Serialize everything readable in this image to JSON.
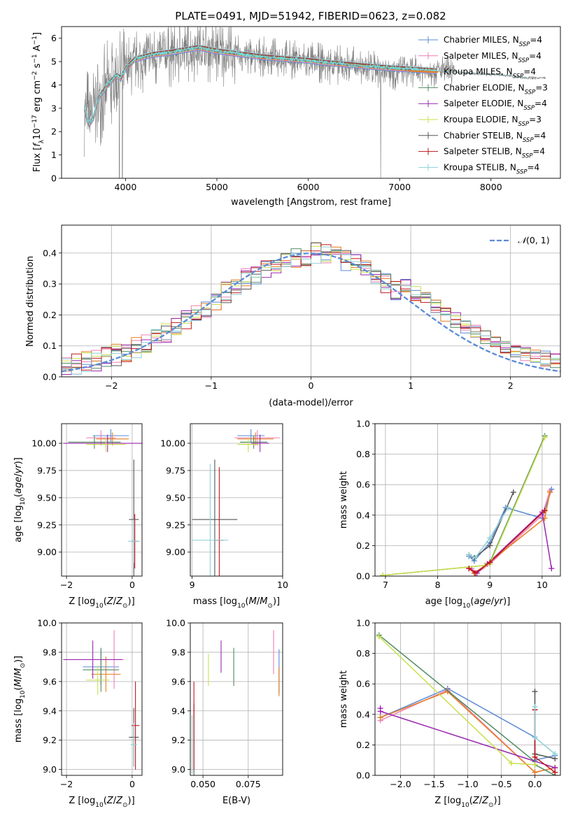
{
  "title": "PLATE=0491, MJD=51942, FIBERID=0623, z=0.082",
  "series_names": [
    "Chabrier MILES, N_SSP=4",
    "Salpeter MILES, N_SSP=4",
    "Kroupa MILES, N_SSP=4",
    "Chabrier ELODIE, N_SSP=3",
    "Salpeter ELODIE, N_SSP=4",
    "Kroupa ELODIE, N_SSP=3",
    "Chabrier STELIB, N_SSP=4",
    "Salpeter STELIB, N_SSP=4",
    "Kroupa STELIB, N_SSP=4"
  ],
  "legend_labels": [
    {
      "name": "Chabrier MILES, N",
      "sub": "SSP",
      "suffix": "=4"
    },
    {
      "name": "Salpeter MILES, N",
      "sub": "SSP",
      "suffix": "=4"
    },
    {
      "name": "Kroupa MILES, N",
      "sub": "SSP",
      "suffix": "=4"
    },
    {
      "name": "Chabrier ELODIE, N",
      "sub": "SSP",
      "suffix": "=3"
    },
    {
      "name": "Salpeter ELODIE, N",
      "sub": "SSP",
      "suffix": "=4"
    },
    {
      "name": "Kroupa ELODIE, N",
      "sub": "SSP",
      "suffix": "=3"
    },
    {
      "name": "Chabrier STELIB, N",
      "sub": "SSP",
      "suffix": "=4"
    },
    {
      "name": "Salpeter STELIB, N",
      "sub": "SSP",
      "suffix": "=4"
    },
    {
      "name": "Kroupa STELIB, N",
      "sub": "SSP",
      "suffix": "=4"
    }
  ],
  "colors": [
    "#5b8bd6",
    "#ee7fb5",
    "#e67e22",
    "#4f8a5e",
    "#9b27af",
    "#c9e04c",
    "#555555",
    "#c0161b",
    "#8fd0d6"
  ],
  "chart_data": [
    {
      "id": "spectrum",
      "type": "line",
      "title": "PLATE=0491, MJD=51942, FIBERID=0623, z=0.082",
      "xlabel": "wavelength [Angstrom, rest frame]",
      "ylabel": "Flux [f_λ 10^-17 erg cm^-2 s^-1 A^-1]",
      "xlim": [
        3300,
        8760
      ],
      "ylim": [
        0,
        6.5
      ],
      "xticks": [
        4000,
        5000,
        6000,
        7000,
        8000
      ],
      "yticks": [
        0,
        1,
        2,
        3,
        4,
        5,
        6
      ],
      "grid": false,
      "legend": "right",
      "data_color": "#7f7f7f",
      "data_x": [
        3550,
        3600,
        3700,
        3800,
        3900,
        3950,
        4000,
        4100,
        4300,
        4500,
        4800,
        5000,
        5200,
        5500,
        5800,
        6000,
        6200,
        6500,
        6800,
        7000,
        7200,
        7400,
        7600,
        7800,
        8000,
        8200,
        8400
      ],
      "data_y": [
        3.0,
        2.7,
        3.3,
        3.9,
        4.3,
        4.4,
        4.6,
        5.0,
        5.2,
        5.3,
        5.5,
        5.4,
        5.3,
        5.2,
        5.1,
        5.0,
        4.9,
        4.8,
        4.7,
        4.6,
        4.6,
        4.6,
        4.55,
        4.5,
        4.45,
        4.4,
        4.3
      ],
      "noise_amplitude": 1.6,
      "model_x": [
        3550,
        3600,
        3650,
        3700,
        3800,
        3900,
        3950,
        4000,
        4100,
        4300,
        4500,
        4800,
        5000,
        5200,
        5500,
        5800,
        6000,
        6200,
        6500,
        6800,
        7000,
        7200,
        7400
      ],
      "model_y": [
        3.0,
        2.3,
        2.6,
        3.4,
        4.0,
        4.4,
        4.3,
        4.7,
        5.1,
        5.3,
        5.4,
        5.6,
        5.45,
        5.35,
        5.2,
        5.1,
        5.05,
        4.95,
        4.85,
        4.75,
        4.7,
        4.65,
        4.6
      ],
      "tail_x": [
        7400,
        7600,
        7800,
        8000,
        8200,
        8400
      ],
      "tail_y": [
        4.6,
        4.55,
        4.5,
        4.45,
        4.4,
        4.3
      ]
    },
    {
      "id": "residuals",
      "type": "histogram",
      "xlabel": "(data-model)/error",
      "ylabel": "Normed distribution",
      "xlim": [
        -2.5,
        2.5
      ],
      "ylim": [
        0,
        0.49
      ],
      "xticks": [
        -2,
        -1,
        0,
        1,
        2
      ],
      "yticks": [
        0.0,
        0.1,
        0.2,
        0.3,
        0.4
      ],
      "grid": true,
      "legend": "top-right",
      "bin_width": 0.1,
      "reference_curve": "N(0,1)",
      "reference_label_main": "𝒩",
      "reference_label_args": "(0, 1)",
      "reference_color": "#5b8bd6"
    },
    {
      "id": "age_vs_Z",
      "type": "scatter",
      "xlabel": "Z [log10(Z/Z☉)]",
      "ylabel": "age [log10(age/yr)]",
      "xlim": [
        -2.15,
        0.3
      ],
      "ylim": [
        8.78,
        10.18
      ],
      "xticks": [
        -2,
        0
      ],
      "yticks": [
        9.0,
        9.25,
        9.5,
        9.75,
        10.0
      ],
      "grid": true,
      "points": [
        {
          "x": -0.65,
          "y": 10.07,
          "xerr": 0.55,
          "yerr": 0.06,
          "c": 0
        },
        {
          "x": -0.95,
          "y": 10.05,
          "xerr": 0.45,
          "yerr": 0.07,
          "c": 1
        },
        {
          "x": -0.6,
          "y": 10.04,
          "xerr": 0.5,
          "yerr": 0.06,
          "c": 2
        },
        {
          "x": -1.15,
          "y": 10.01,
          "xerr": 0.8,
          "yerr": 0.06,
          "c": 3
        },
        {
          "x": -0.75,
          "y": 10.0,
          "xerr": 1.35,
          "yerr": 0.08,
          "c": 4
        },
        {
          "x": -0.8,
          "y": 9.99,
          "xerr": 0.6,
          "yerr": 0.07,
          "c": 5
        },
        {
          "x": 0.05,
          "y": 9.3,
          "xerr": 0.15,
          "yerr": 0.55,
          "c": 6
        },
        {
          "x": 0.08,
          "y": 9.1,
          "xerr": 0.1,
          "yerr": 0.25,
          "c": 7
        },
        {
          "x": 0.05,
          "y": 9.1,
          "xerr": 0.18,
          "yerr": 0.2,
          "c": 8
        }
      ]
    },
    {
      "id": "age_vs_mass",
      "type": "scatter",
      "xlabel": "mass [log10(M/M☉)]",
      "ylabel": "",
      "xlim": [
        8.98,
        10.0
      ],
      "ylim": [
        8.78,
        10.18
      ],
      "xticks": [
        9,
        10
      ],
      "yticks": [
        9.0,
        9.25,
        9.5,
        9.75,
        10.0
      ],
      "grid": true,
      "points": [
        {
          "x": 9.65,
          "y": 10.07,
          "xerr": 0.15,
          "yerr": 0.06,
          "c": 0
        },
        {
          "x": 9.72,
          "y": 10.05,
          "xerr": 0.25,
          "yerr": 0.07,
          "c": 1
        },
        {
          "x": 9.7,
          "y": 10.04,
          "xerr": 0.2,
          "yerr": 0.06,
          "c": 2
        },
        {
          "x": 9.68,
          "y": 10.01,
          "xerr": 0.15,
          "yerr": 0.06,
          "c": 3
        },
        {
          "x": 9.75,
          "y": 10.0,
          "xerr": 0.1,
          "yerr": 0.08,
          "c": 4
        },
        {
          "x": 9.62,
          "y": 9.99,
          "xerr": 0.12,
          "yerr": 0.07,
          "c": 5
        },
        {
          "x": 9.25,
          "y": 9.3,
          "xerr": 0.25,
          "yerr": 0.55,
          "c": 6
        },
        {
          "x": 9.3,
          "y": 9.11,
          "xerr": 0.05,
          "yerr": 0.67,
          "c": 7
        },
        {
          "x": 9.2,
          "y": 9.11,
          "xerr": 0.2,
          "yerr": 0.7,
          "c": 8
        }
      ]
    },
    {
      "id": "mass_weight_vs_age",
      "type": "line",
      "xlabel": "age [log10(age/yr)]",
      "ylabel": "mass weight",
      "xlim": [
        6.8,
        10.35
      ],
      "ylim": [
        0.0,
        1.0
      ],
      "xticks": [
        7,
        8,
        9,
        10
      ],
      "yticks": [
        0.0,
        0.2,
        0.4,
        0.6,
        0.8,
        1.0
      ],
      "grid": true,
      "series": [
        {
          "c": 0,
          "x": [
            8.6,
            8.7,
            9.0,
            9.3,
            10.0,
            10.18
          ],
          "y": [
            0.13,
            0.1,
            0.22,
            0.45,
            0.38,
            0.57
          ]
        },
        {
          "c": 1,
          "x": [
            8.65,
            8.75,
            9.0,
            10.0,
            10.15
          ],
          "y": [
            0.05,
            0.02,
            0.08,
            0.4,
            0.56
          ]
        },
        {
          "c": 2,
          "x": [
            8.6,
            8.7,
            8.95,
            10.05,
            10.15
          ],
          "y": [
            0.05,
            0.02,
            0.08,
            0.38,
            0.55
          ]
        },
        {
          "c": 3,
          "x": [
            6.95,
            8.9,
            9.0,
            10.05
          ],
          "y": [
            0.005,
            0.07,
            0.09,
            0.92
          ]
        },
        {
          "c": 4,
          "x": [
            8.6,
            8.75,
            8.95,
            10.0,
            10.18
          ],
          "y": [
            0.05,
            0.02,
            0.08,
            0.42,
            0.05
          ]
        },
        {
          "c": 5,
          "x": [
            6.95,
            8.9,
            9.0,
            10.05
          ],
          "y": [
            0.005,
            0.07,
            0.08,
            0.91
          ]
        },
        {
          "c": 6,
          "x": [
            8.6,
            8.7,
            9.0,
            9.45
          ],
          "y": [
            0.14,
            0.12,
            0.2,
            0.55
          ]
        },
        {
          "c": 7,
          "x": [
            8.6,
            8.72,
            9.0,
            10.05
          ],
          "y": [
            0.05,
            0.02,
            0.09,
            0.43
          ]
        },
        {
          "c": 8,
          "x": [
            8.6,
            8.72,
            9.0,
            9.35
          ],
          "y": [
            0.14,
            0.12,
            0.25,
            0.45
          ]
        }
      ]
    },
    {
      "id": "mass_vs_Z",
      "type": "scatter",
      "xlabel": "Z [log10(Z/Z☉)]",
      "ylabel": "mass [log10(M/M☉)]",
      "xlim": [
        -2.15,
        0.3
      ],
      "ylim": [
        8.96,
        10.0
      ],
      "xticks": [
        -2,
        0
      ],
      "yticks": [
        9.0,
        9.2,
        9.4,
        9.6,
        9.8,
        10.0
      ],
      "grid": true,
      "points": [
        {
          "x": -0.95,
          "y": 9.7,
          "xerr": 0.55,
          "yerr": 0.12,
          "c": 0
        },
        {
          "x": -0.55,
          "y": 9.75,
          "xerr": 0.3,
          "yerr": 0.2,
          "c": 1
        },
        {
          "x": -0.8,
          "y": 9.65,
          "xerr": 0.45,
          "yerr": 0.12,
          "c": 2
        },
        {
          "x": -0.95,
          "y": 9.68,
          "xerr": 0.55,
          "yerr": 0.15,
          "c": 3
        },
        {
          "x": -1.2,
          "y": 9.75,
          "xerr": 0.9,
          "yerr": 0.13,
          "c": 4
        },
        {
          "x": -1.05,
          "y": 9.61,
          "xerr": 0.35,
          "yerr": 0.1,
          "c": 5
        },
        {
          "x": 0.05,
          "y": 9.22,
          "xerr": 0.15,
          "yerr": 0.2,
          "c": 6
        },
        {
          "x": 0.1,
          "y": 9.3,
          "xerr": 0.12,
          "yerr": 0.3,
          "c": 7
        },
        {
          "x": 0.05,
          "y": 9.17,
          "xerr": 0.1,
          "yerr": 0.15,
          "c": 8
        }
      ]
    },
    {
      "id": "mass_vs_EBV",
      "type": "scatter",
      "xlabel": "E(B-V)",
      "ylabel": "",
      "xlim": [
        0.043,
        0.094
      ],
      "ylim": [
        8.96,
        10.0
      ],
      "xticks": [
        0.05,
        0.075
      ],
      "yticks": [
        9.0,
        9.2,
        9.4,
        9.6,
        9.8,
        10.0
      ],
      "grid": true,
      "points": [
        {
          "x": 0.092,
          "y": 9.67,
          "xerr": 0.0,
          "yerr": 0.15,
          "c": 0
        },
        {
          "x": 0.089,
          "y": 9.8,
          "xerr": 0.0,
          "yerr": 0.15,
          "c": 1
        },
        {
          "x": 0.092,
          "y": 9.6,
          "xerr": 0.0,
          "yerr": 0.1,
          "c": 2
        },
        {
          "x": 0.067,
          "y": 9.7,
          "xerr": 0.0,
          "yerr": 0.13,
          "c": 3
        },
        {
          "x": 0.06,
          "y": 9.77,
          "xerr": 0.0,
          "yerr": 0.11,
          "c": 4
        },
        {
          "x": 0.053,
          "y": 9.68,
          "xerr": 0.0,
          "yerr": 0.11,
          "c": 5
        },
        {
          "x": 0.045,
          "y": 9.2,
          "xerr": 0.0,
          "yerr": 0.25,
          "c": 6
        },
        {
          "x": 0.045,
          "y": 9.3,
          "xerr": 0.0,
          "yerr": 0.3,
          "c": 7
        },
        {
          "x": 0.044,
          "y": 9.17,
          "xerr": 0.0,
          "yerr": 0.2,
          "c": 8
        }
      ]
    },
    {
      "id": "mass_weight_vs_Z",
      "type": "line",
      "xlabel": "Z [log10(Z/Z☉)]",
      "ylabel": "mass weight",
      "xlim": [
        -2.38,
        0.38
      ],
      "ylim": [
        0.0,
        1.0
      ],
      "xticks": [
        -2.0,
        -1.5,
        -1.0,
        -0.5,
        0.0
      ],
      "yticks": [
        0.0,
        0.2,
        0.4,
        0.6,
        0.8,
        1.0
      ],
      "grid": true,
      "series": [
        {
          "c": 0,
          "x": [
            -2.3,
            -1.3,
            0.0,
            0.0,
            0.3
          ],
          "y": [
            0.38,
            0.57,
            0.25,
            0.1,
            0.13
          ]
        },
        {
          "c": 1,
          "x": [
            -2.3,
            -1.3,
            0.0,
            0.3
          ],
          "y": [
            0.36,
            0.56,
            0.02,
            0.05
          ]
        },
        {
          "c": 2,
          "x": [
            -2.3,
            -1.3,
            0.0,
            0.3
          ],
          "y": [
            0.38,
            0.55,
            0.02,
            0.05
          ]
        },
        {
          "c": 3,
          "x": [
            -2.32,
            0.0,
            0.0,
            0.3
          ],
          "y": [
            0.92,
            0.09,
            0.07,
            0.0
          ]
        },
        {
          "c": 4,
          "x": [
            -2.3,
            -2.3,
            0.3
          ],
          "y": [
            0.44,
            0.42,
            0.05
          ]
        },
        {
          "c": 5,
          "x": [
            -2.32,
            -0.35,
            0.0
          ],
          "y": [
            0.91,
            0.08,
            0.07
          ]
        },
        {
          "c": 6,
          "x": [
            0.0,
            0.0,
            0.3
          ],
          "y": [
            0.55,
            0.14,
            0.11
          ]
        },
        {
          "c": 7,
          "x": [
            0.0,
            0.0,
            0.3
          ],
          "y": [
            0.43,
            0.12,
            0.02
          ]
        },
        {
          "c": 8,
          "x": [
            0.0,
            0.0,
            0.3
          ],
          "y": [
            0.45,
            0.25,
            0.14
          ]
        }
      ]
    }
  ]
}
